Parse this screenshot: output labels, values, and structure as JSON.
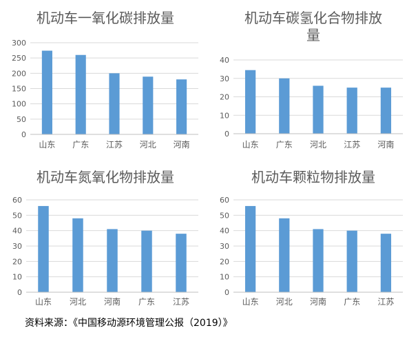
{
  "bar_color": "#5B9BD5",
  "source_note": "资料来源：《中国移动源环境管理公报（2019）》",
  "chart_data": [
    {
      "type": "bar",
      "title": "机动车一氧化碳排放量",
      "categories": [
        "山东",
        "广东",
        "江苏",
        "河北",
        "河南"
      ],
      "values": [
        274,
        260,
        200,
        189,
        180
      ],
      "ylim": [
        0,
        300
      ],
      "yticks": [
        0,
        50,
        100,
        150,
        200,
        250,
        300
      ],
      "grid": true
    },
    {
      "type": "bar",
      "title": "机动车碳氢化合物排放量",
      "categories": [
        "山东",
        "广东",
        "河北",
        "江苏",
        "河南"
      ],
      "values": [
        34.5,
        30,
        26,
        25,
        25
      ],
      "ylim": [
        0,
        40
      ],
      "yticks": [
        0,
        10,
        20,
        30,
        40
      ],
      "grid": true
    },
    {
      "type": "bar",
      "title": "机动车氮氧化物排放量",
      "categories": [
        "山东",
        "河北",
        "河南",
        "广东",
        "江苏"
      ],
      "values": [
        56,
        48,
        41,
        40,
        38
      ],
      "ylim": [
        0,
        60
      ],
      "yticks": [
        0,
        10,
        20,
        30,
        40,
        50,
        60
      ],
      "grid": true
    },
    {
      "type": "bar",
      "title": "机动车颗粒物排放量",
      "categories": [
        "山东",
        "河北",
        "河南",
        "广东",
        "江苏"
      ],
      "values": [
        56,
        48,
        41,
        40,
        38
      ],
      "ylim": [
        0,
        60
      ],
      "yticks": [
        0,
        10,
        20,
        30,
        40,
        50,
        60
      ],
      "grid": true
    }
  ]
}
